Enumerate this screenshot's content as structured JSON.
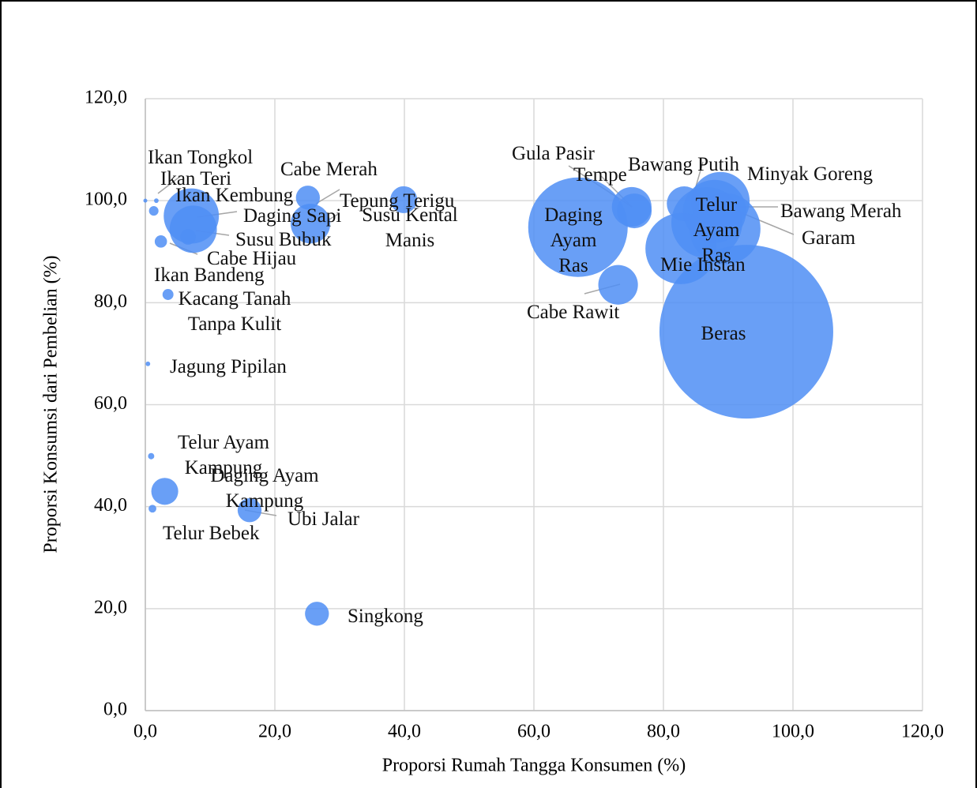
{
  "chart_data": {
    "type": "bubble",
    "x_label": "Proporsi Rumah Tangga Konsumen (%)",
    "y_label": "Proporsi Konsumsi dari Pembelian (%)",
    "xlim": [
      0,
      120
    ],
    "ylim": [
      0,
      120
    ],
    "xticks": [
      {
        "value": 0,
        "label": "0,0"
      },
      {
        "value": 20,
        "label": "20,0"
      },
      {
        "value": 40,
        "label": "40,0"
      },
      {
        "value": 60,
        "label": "60,0"
      },
      {
        "value": 80,
        "label": "80,0"
      },
      {
        "value": 100,
        "label": "100,0"
      },
      {
        "value": 120,
        "label": "120,0"
      }
    ],
    "yticks": [
      {
        "value": 0,
        "label": "0,0"
      },
      {
        "value": 20,
        "label": "20,0"
      },
      {
        "value": 40,
        "label": "40,0"
      },
      {
        "value": 60,
        "label": "60,0"
      },
      {
        "value": 80,
        "label": "80,0"
      },
      {
        "value": 100,
        "label": "100,0"
      },
      {
        "value": 120,
        "label": "120,0"
      }
    ],
    "grid": true,
    "color": "#4f8ef5",
    "categories": [
      "Ikan Tongkol",
      "Ikan Teri",
      "Ikan Kembung",
      "Daging Sapi",
      "Susu Bubuk",
      "Cabe Hijau",
      "Ikan Bandeng",
      "Kacang Tanah Tanpa Kulit",
      "Jagung Pipilan",
      "Telur Ayam Kampung",
      "Daging Ayam Kampung",
      "Telur Bebek",
      "Ubi Jalar",
      "Singkong",
      "Cabe Merah",
      "Susu Kental Manis",
      "Tepung Terigu",
      "Daging Ayam Ras",
      "Gula Pasir",
      "Tempe",
      "Cabe Rawit",
      "Bawang Putih",
      "Minyak Goreng",
      "Telur Ayam Ras",
      "Bawang Merah",
      "Garam",
      "Mie Instan",
      "Beras"
    ],
    "x": [
      0,
      1.7,
      1.3,
      7.1,
      7.4,
      6.6,
      2.4,
      3.5,
      0.4,
      0.9,
      3,
      1.1,
      16.1,
      26.5,
      25.1,
      25.5,
      39.9,
      66.8,
      75.1,
      75.5,
      73,
      83.2,
      88.8,
      86.7,
      87.9,
      89.5,
      82.7,
      92.8
    ],
    "values": [
      100,
      100,
      98,
      97,
      94.4,
      92.9,
      92,
      81.6,
      68,
      49.9,
      43,
      39.6,
      39.3,
      19,
      100.6,
      95.5,
      100.2,
      94.8,
      98.8,
      98,
      83.5,
      99.4,
      99.9,
      95.7,
      97.9,
      94.5,
      90.6,
      74.3
    ],
    "sizes": [
      0.03,
      0.07,
      0.3,
      10.1,
      7.4,
      0.8,
      0.5,
      0.4,
      0.07,
      0.13,
      2.4,
      0.2,
      1.9,
      1.9,
      1.9,
      5.2,
      2.4,
      32.8,
      5.2,
      4,
      5.2,
      4,
      11.3,
      16.7,
      13.2,
      16.7,
      16.7,
      100
    ]
  }
}
